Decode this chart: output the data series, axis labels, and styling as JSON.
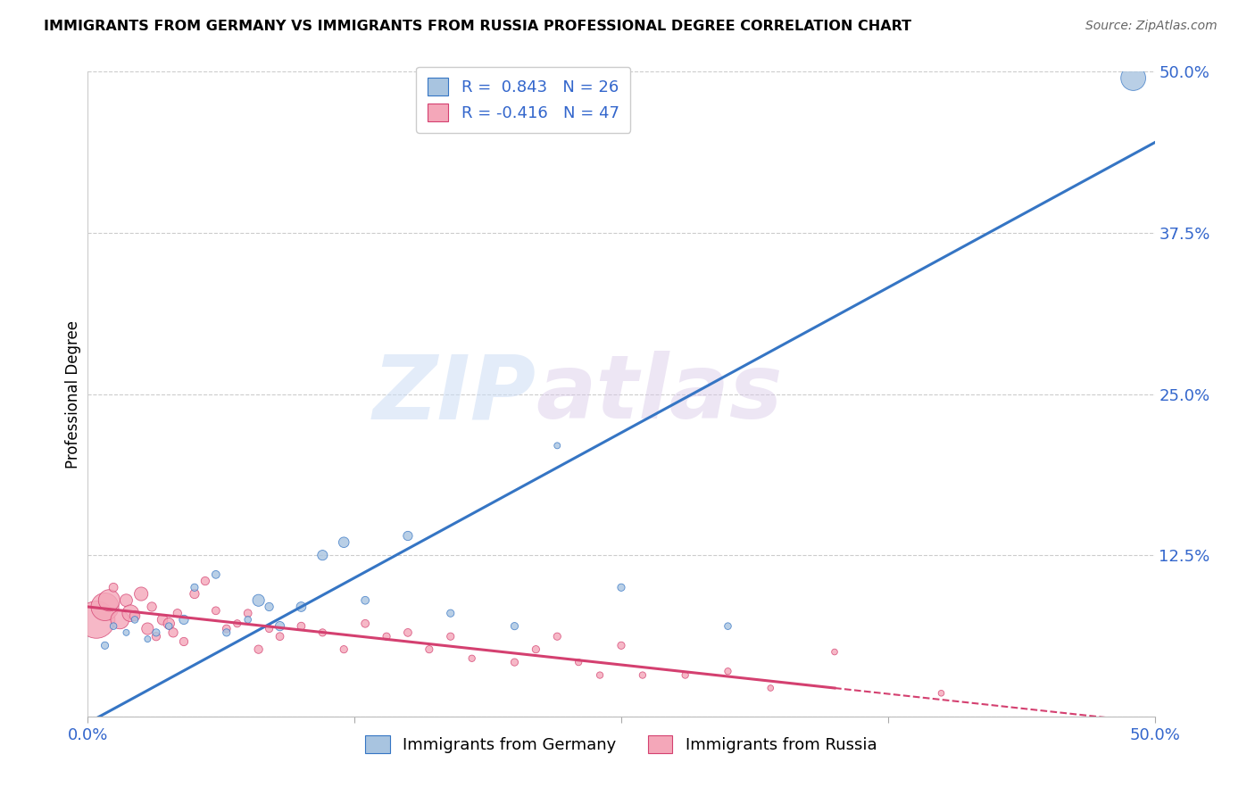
{
  "title": "IMMIGRANTS FROM GERMANY VS IMMIGRANTS FROM RUSSIA PROFESSIONAL DEGREE CORRELATION CHART",
  "source": "Source: ZipAtlas.com",
  "ylabel": "Professional Degree",
  "xlim": [
    0.0,
    0.5
  ],
  "ylim": [
    0.0,
    0.5
  ],
  "yticks": [
    0.0,
    0.125,
    0.25,
    0.375,
    0.5
  ],
  "ytick_labels_right": [
    "",
    "12.5%",
    "25.0%",
    "37.5%",
    "50.0%"
  ],
  "watermark_zip": "ZIP",
  "watermark_atlas": "atlas",
  "germany_color": "#a8c4e0",
  "russia_color": "#f4a7b9",
  "germany_line_color": "#3575c4",
  "russia_line_color": "#d44070",
  "R_germany": 0.843,
  "N_germany": 26,
  "R_russia": -0.416,
  "N_russia": 47,
  "germany_scatter_x": [
    0.008,
    0.012,
    0.018,
    0.022,
    0.028,
    0.032,
    0.038,
    0.045,
    0.05,
    0.06,
    0.065,
    0.075,
    0.08,
    0.085,
    0.09,
    0.1,
    0.11,
    0.12,
    0.13,
    0.15,
    0.17,
    0.2,
    0.22,
    0.25,
    0.3,
    0.49
  ],
  "germany_scatter_y": [
    0.055,
    0.07,
    0.065,
    0.075,
    0.06,
    0.065,
    0.07,
    0.075,
    0.1,
    0.11,
    0.065,
    0.075,
    0.09,
    0.085,
    0.07,
    0.085,
    0.125,
    0.135,
    0.09,
    0.14,
    0.08,
    0.07,
    0.21,
    0.1,
    0.07,
    0.495
  ],
  "germany_scatter_size": [
    35,
    30,
    25,
    30,
    25,
    35,
    30,
    55,
    35,
    40,
    35,
    30,
    90,
    45,
    55,
    60,
    65,
    70,
    40,
    55,
    35,
    35,
    25,
    35,
    30,
    400
  ],
  "russia_scatter_x": [
    0.004,
    0.008,
    0.01,
    0.012,
    0.015,
    0.018,
    0.02,
    0.022,
    0.025,
    0.028,
    0.03,
    0.032,
    0.035,
    0.038,
    0.04,
    0.042,
    0.045,
    0.05,
    0.055,
    0.06,
    0.065,
    0.07,
    0.075,
    0.08,
    0.085,
    0.09,
    0.1,
    0.11,
    0.12,
    0.13,
    0.14,
    0.15,
    0.16,
    0.17,
    0.18,
    0.2,
    0.21,
    0.22,
    0.23,
    0.24,
    0.25,
    0.26,
    0.28,
    0.3,
    0.32,
    0.35,
    0.4
  ],
  "russia_scatter_y": [
    0.075,
    0.085,
    0.09,
    0.1,
    0.075,
    0.09,
    0.08,
    0.078,
    0.095,
    0.068,
    0.085,
    0.062,
    0.075,
    0.072,
    0.065,
    0.08,
    0.058,
    0.095,
    0.105,
    0.082,
    0.068,
    0.072,
    0.08,
    0.052,
    0.068,
    0.062,
    0.07,
    0.065,
    0.052,
    0.072,
    0.062,
    0.065,
    0.052,
    0.062,
    0.045,
    0.042,
    0.052,
    0.062,
    0.042,
    0.032,
    0.055,
    0.032,
    0.032,
    0.035,
    0.022,
    0.05,
    0.018
  ],
  "russia_scatter_size": [
    900,
    500,
    300,
    50,
    220,
    100,
    180,
    70,
    120,
    90,
    55,
    45,
    70,
    80,
    55,
    45,
    45,
    55,
    45,
    40,
    40,
    35,
    40,
    45,
    35,
    40,
    40,
    35,
    35,
    40,
    35,
    40,
    35,
    35,
    28,
    35,
    35,
    35,
    28,
    28,
    35,
    28,
    28,
    28,
    23,
    23,
    23
  ],
  "germany_line_x": [
    0.0,
    0.5
  ],
  "germany_line_y_intercept": -0.005,
  "germany_line_slope": 0.9,
  "russia_line_x_solid_start": 0.0,
  "russia_line_x_solid_end": 0.35,
  "russia_line_x_dashed_end": 0.5,
  "russia_line_y_intercept": 0.085,
  "russia_line_slope": -0.18
}
